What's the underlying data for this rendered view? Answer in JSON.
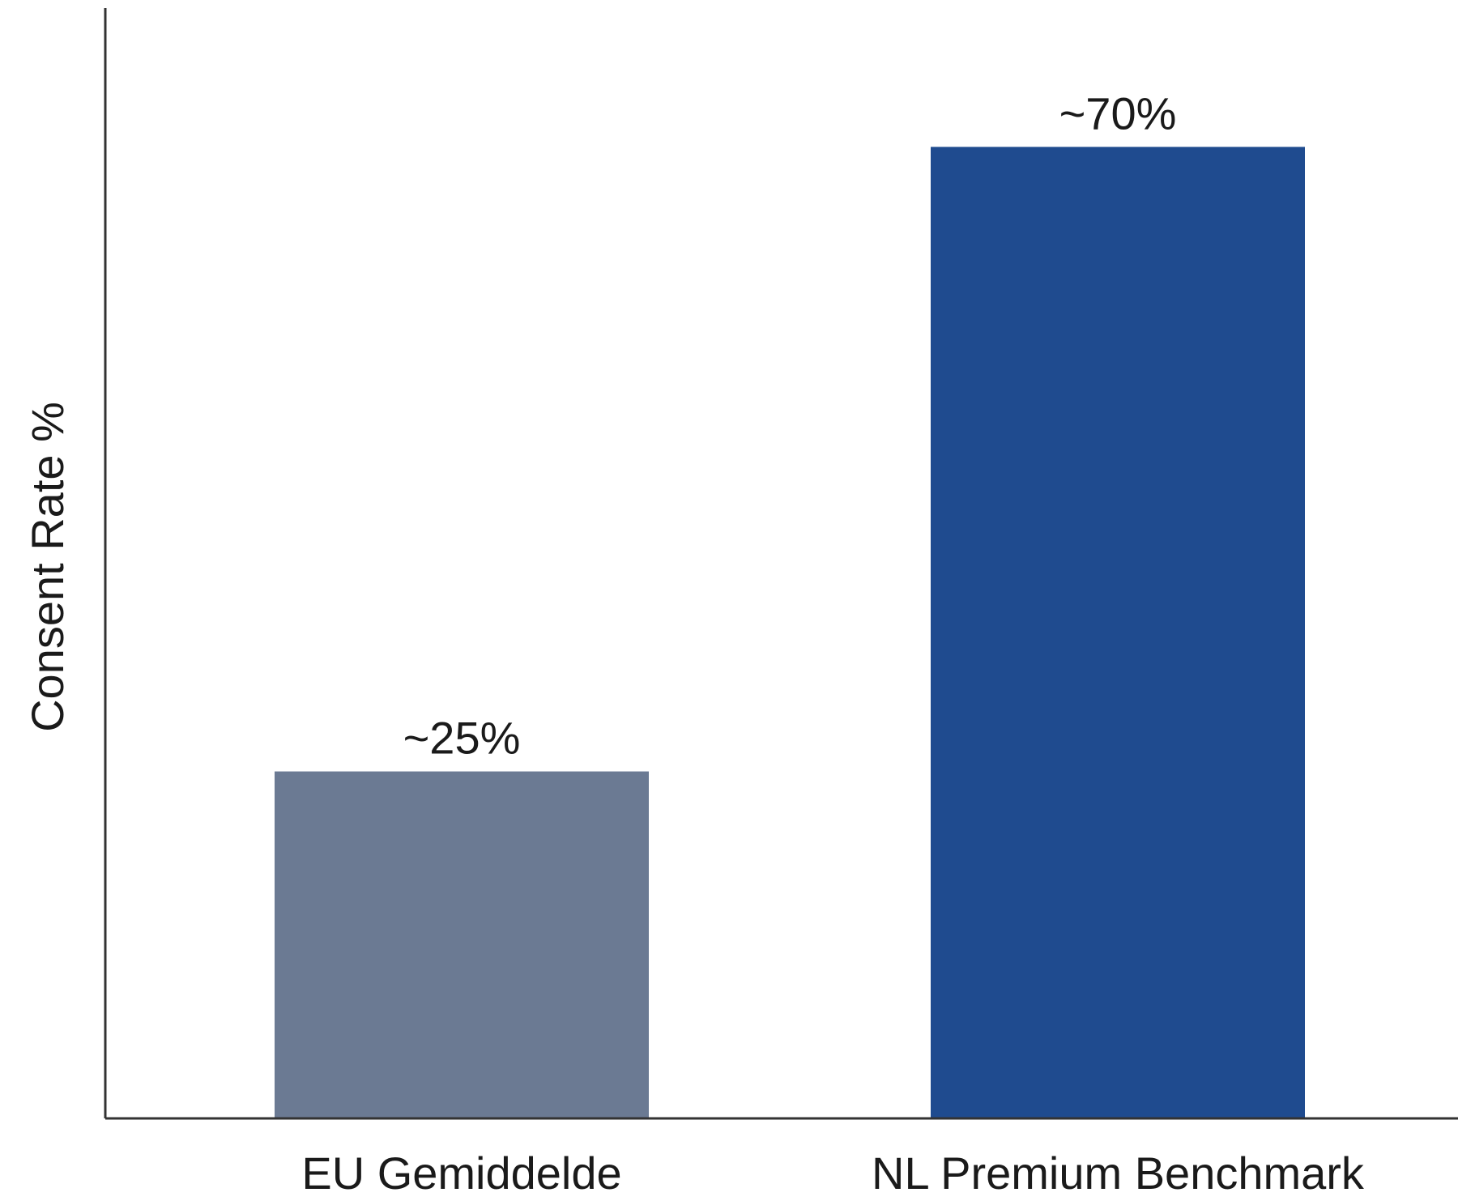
{
  "chart_data": {
    "type": "bar",
    "title": "",
    "xlabel": "",
    "ylabel": "Consent Rate %",
    "categories": [
      "EU Gemiddelde",
      "NL Premium Benchmark"
    ],
    "values": [
      25,
      70
    ],
    "data_labels": [
      "~25%",
      "~70%"
    ],
    "bar_colors": [
      "#6b7a93",
      "#1f4b8f"
    ],
    "ylim": [
      0,
      80
    ],
    "grid": false,
    "legend": "none",
    "axis_color": "#333333"
  }
}
